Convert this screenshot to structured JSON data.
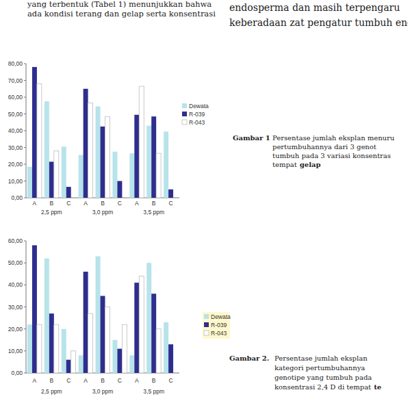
{
  "chart_data": [
    {
      "type": "bar",
      "caption": {
        "label": "Gambar 1",
        "lines": [
          "Persentase jumlah eksplan menuru",
          "pertumbuhannya dari 3 genot",
          "tumbuh pada 3 variasi konsentras",
          "tempat"
        ],
        "emphasis": "gelap"
      },
      "categories": [
        "A",
        "B",
        "C",
        "A",
        "B",
        "C",
        "A",
        "B",
        "C"
      ],
      "group_labels": [
        "2,5 ppm",
        "3,0 ppm",
        "3,5 ppm"
      ],
      "series": [
        {
          "name": "Dewata",
          "color": "#b7e3ea",
          "values": [
            18.5,
            57.5,
            30.5,
            25.5,
            54.5,
            27.5,
            26.5,
            43,
            39.5
          ]
        },
        {
          "name": "R-039",
          "color": "#2e2e8e",
          "values": [
            78,
            21.5,
            6.5,
            65,
            42.5,
            10,
            49.5,
            48.5,
            5
          ]
        },
        {
          "name": "R-043",
          "color": "#ffffff",
          "values": [
            68,
            28,
            0,
            56.5,
            48.5,
            0,
            66.5,
            26.5,
            0
          ]
        }
      ],
      "ylim": [
        0,
        80
      ],
      "yticks": [
        {
          "value": 0,
          "label": "0,00"
        },
        {
          "value": 10,
          "label": "10,00"
        },
        {
          "value": 20,
          "label": "20,00"
        },
        {
          "value": 30,
          "label": "30,00"
        },
        {
          "value": 40,
          "label": "40,00"
        },
        {
          "value": 50,
          "label": "50,00"
        },
        {
          "value": 60,
          "label": "60,00"
        },
        {
          "value": 70,
          "label": "70,00"
        },
        {
          "value": 80,
          "label": "80,00"
        }
      ],
      "grid": false,
      "legend": "right"
    },
    {
      "type": "bar",
      "caption": {
        "label": "Gambar 2.",
        "lines": [
          "Persentase jumlah eksplan",
          "kategori pertumbuhannya",
          "genotipe yang tumbuh pada",
          "konsentrasi 2,4 D di tempat"
        ],
        "emphasis": "te"
      },
      "categories": [
        "A",
        "B",
        "C",
        "A",
        "B",
        "C",
        "A",
        "B",
        "C"
      ],
      "group_labels": [
        "2,5 ppm",
        "3,0 ppm",
        "3,5 ppm"
      ],
      "series": [
        {
          "name": "Dewata",
          "color": "#b7e3ea",
          "values": [
            22,
            52,
            20,
            8,
            53,
            15,
            8,
            50,
            23
          ]
        },
        {
          "name": "R-039",
          "color": "#2e2e8e",
          "values": [
            58,
            27,
            6,
            46,
            35,
            11,
            41,
            36,
            13
          ]
        },
        {
          "name": "R-043",
          "color": "#ffffff",
          "values": [
            22,
            22,
            10,
            27,
            30,
            22,
            44,
            20,
            0
          ]
        }
      ],
      "ylim": [
        0,
        60
      ],
      "yticks": [
        {
          "value": 0,
          "label": "0,00"
        },
        {
          "value": 10,
          "label": "10,00"
        },
        {
          "value": 20,
          "label": "20,00"
        },
        {
          "value": 30,
          "label": "30,00"
        },
        {
          "value": 40,
          "label": "40,00"
        },
        {
          "value": 50,
          "label": "50,00"
        },
        {
          "value": 60,
          "label": "60,00"
        }
      ],
      "grid": false,
      "legend": "right"
    }
  ],
  "body": {
    "left": [
      "yang terbentuk (Tabel 1) menunjukkan bahwa",
      "ada kondisi terang dan gelap serta konsentrasi"
    ],
    "right": [
      "endosperma dan masih terpengaru",
      "keberadaan zat pengatur tumbuh endo"
    ]
  }
}
